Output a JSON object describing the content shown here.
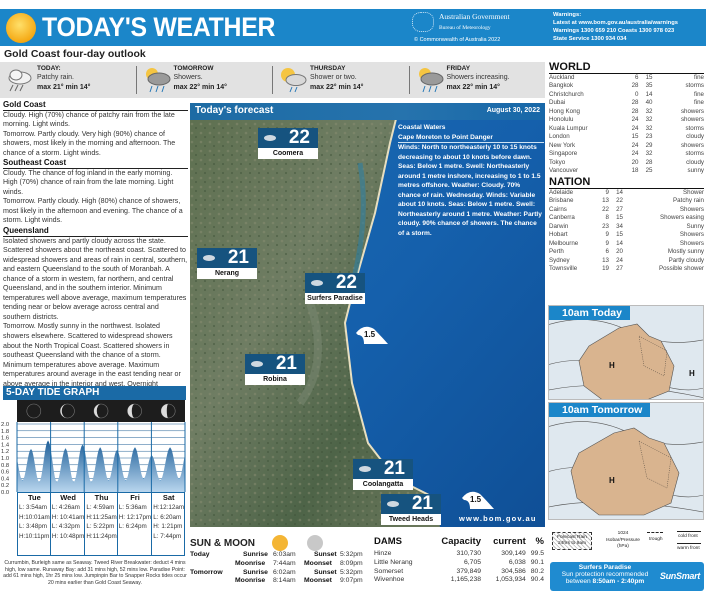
{
  "header": {
    "title": "TODAY'S WEATHER",
    "gov_line1": "Australian Government",
    "gov_line2": "Bureau of Meteorology",
    "copyright": "© Commonwealth of Australia 2022",
    "warnings_title": "Warnings:",
    "warnings_line1": "Latest at www.bom.gov.au/australia/warnings",
    "warnings_line2": "Warnings 1300 659 210  Coasts 1300 978 023",
    "warnings_line3": "State Service 1300 934 034",
    "accent_color": "#1b86c9"
  },
  "outlook": {
    "title": "Gold Coast four-day outlook",
    "days": [
      {
        "name": "TODAY:",
        "desc": "Patchy rain.",
        "temps": "max 21° min 14°",
        "icon": "rain-cloud-icon"
      },
      {
        "name": "TOMORROW",
        "desc": "Showers.",
        "temps": "max 22° min 14°",
        "icon": "sun-cloud-showers-icon"
      },
      {
        "name": "THURSDAY",
        "desc": "Shower or two.",
        "temps": "max 22° min 14°",
        "icon": "sun-cloud-shower-icon"
      },
      {
        "name": "FRIDAY",
        "desc": "Showers increasing.",
        "temps": "max 22° min 14°",
        "icon": "sun-cloud-showers-icon"
      }
    ]
  },
  "forecast_text": {
    "gold_coast": {
      "heading": "Gold Coast",
      "today": "Cloudy. High (70%) chance of patchy rain from the late morning. Light winds.",
      "tomorrow": "Tomorrow. Partly cloudy. Very high (90%) chance of showers, most likely in the morning and afternoon. The chance of a storm. Light winds."
    },
    "southeast_coast": {
      "heading": "Southeast Coast",
      "today": "Cloudy. The chance of fog inland in the early morning. High (70%) chance of rain from the late morning. Light winds.",
      "tomorrow": "Tomorrow. Partly cloudy. High (80%) chance of showers, most likely in the afternoon and evening. The chance of a storm. Light winds."
    },
    "queensland": {
      "heading": "Queensland",
      "today": "Isolated showers and partly cloudy across the state. Scattered showers about the northeast coast. Scattered to widespread showers and areas of rain in central, southern, and eastern Queensland to the south of Moranbah. A chance of a storm in western, far northern, and central Queensland, and in the southern interior. Minimum temperatures well above average, maximum temperatures tending near or below average across central and southern districts.",
      "tomorrow": "Tomorrow. Mostly sunny in the northwest. Isolated showers elsewhere. Scattered to widespread showers about the North Tropical Coast. Scattered showers in southeast Queensland with the chance of a storm. Minimum temperatures above average. Maximum temperatures around average in the east tending near or above average in the interior and west. Overnight minimums well above average across most of the state."
    }
  },
  "tide": {
    "title": "5-DAY TIDE GRAPH",
    "days": [
      {
        "name": "Tue",
        "rows": [
          "L:  3:54am",
          "H:10:01am",
          "L:  3:48pm",
          "H:10:11pm"
        ]
      },
      {
        "name": "Wed",
        "rows": [
          "L:  4:26am",
          "H: 10:41am",
          "L:  4:32pm",
          "H: 10:48pm"
        ]
      },
      {
        "name": "Thu",
        "rows": [
          "L:  4:59am",
          "H:11:25am",
          "L:  5:22pm",
          "H:11:24pm"
        ]
      },
      {
        "name": "Fri",
        "rows": [
          "L:  5:36am",
          "H: 12:17pm",
          "L:  6:24pm",
          ""
        ]
      },
      {
        "name": "Sat",
        "rows": [
          "H:12:12am",
          "L:  6:20am",
          "H:  1:21pm",
          "L:  7:44pm"
        ]
      }
    ],
    "note": "Currumbin, Burleigh same as Seaway. Tweed River Breakwater: deduct 4 mins high, low same. Runaway Bay: add 31 mins high, 52 mins low. Paradise Point: add 61 mins high, 1hr 25 mins low. Jumpinpin Bar to Snapper Rocks tides occur 20 mins earlier than Gold Coast Seaway."
  },
  "chart_data": {
    "type": "area",
    "title": "5-DAY TIDE GRAPH",
    "xlabel": "",
    "ylabel": "",
    "categories": [
      "Tue",
      "Wed",
      "Thu",
      "Fri",
      "Sat"
    ],
    "ylim": [
      0,
      2.0
    ],
    "yticks": [
      "2.0",
      "1.8",
      "1.6",
      "1.4",
      "1.2",
      "1.0",
      "0.8",
      "0.6",
      "0.4",
      "0.2",
      "0.0"
    ],
    "grid": true,
    "color": "#2a7ab8",
    "series": [
      {
        "points": [
          {
            "day": "Tue",
            "time": "3:54am",
            "height": 0.35
          },
          {
            "day": "Tue",
            "time": "10:01am",
            "height": 1.25
          },
          {
            "day": "Tue",
            "time": "3:48pm",
            "height": 0.3
          },
          {
            "day": "Tue",
            "time": "10:11pm",
            "height": 1.5
          },
          {
            "day": "Wed",
            "time": "4:26am",
            "height": 0.3
          },
          {
            "day": "Wed",
            "time": "10:41am",
            "height": 1.27
          },
          {
            "day": "Wed",
            "time": "4:32pm",
            "height": 0.3
          },
          {
            "day": "Wed",
            "time": "10:48pm",
            "height": 1.38
          },
          {
            "day": "Thu",
            "time": "4:59am",
            "height": 0.3
          },
          {
            "day": "Thu",
            "time": "11:25am",
            "height": 1.3
          },
          {
            "day": "Thu",
            "time": "5:22pm",
            "height": 0.35
          },
          {
            "day": "Thu",
            "time": "11:24pm",
            "height": 1.22
          },
          {
            "day": "Fri",
            "time": "5:36am",
            "height": 0.35
          },
          {
            "day": "Fri",
            "time": "12:17pm",
            "height": 1.3
          },
          {
            "day": "Fri",
            "time": "6:24pm",
            "height": 0.4
          },
          {
            "day": "Sat",
            "time": "12:12am",
            "height": 1.07
          },
          {
            "day": "Sat",
            "time": "6:20am",
            "height": 0.35
          },
          {
            "day": "Sat",
            "time": "1:21pm",
            "height": 1.3
          },
          {
            "day": "Sat",
            "time": "7:44pm",
            "height": 0.4
          }
        ]
      }
    ]
  },
  "map": {
    "title": "Today's forecast",
    "date": "August 30, 2022",
    "locations": [
      {
        "name": "Coomera",
        "temp": "22"
      },
      {
        "name": "Nerang",
        "temp": "21"
      },
      {
        "name": "Surfers Paradise",
        "temp": "22"
      },
      {
        "name": "Robina",
        "temp": "21"
      },
      {
        "name": "Coolangatta",
        "temp": "21"
      },
      {
        "name": "Tweed Heads",
        "temp": "21"
      }
    ],
    "waves": [
      "1.5",
      "1.5"
    ],
    "url": "www.bom.gov.au",
    "coastal": {
      "title": "Coastal Waters",
      "area": "Cape Moreton to Point Danger",
      "text": "Winds: North to northeasterly 10 to 15 knots decreasing to about 10 knots before dawn. Seas: Below 1 metre. Swell: Northeasterly around 1 metre inshore, increasing to 1 to 1.5 metres offshore. Weather: Cloudy. 70% chance of rain. Wednesday. Winds: Variable about 10 knots. Seas: Below 1 metre. Swell: Northeasterly around 1 metre. Weather: Partly cloudy. 90% chance of showers. The chance of a storm."
    }
  },
  "sun_moon": {
    "title": "SUN & MOON",
    "today": {
      "label": "Today",
      "sunrise_l": "Sunrise",
      "sunrise": "6:03am",
      "sunset_l": "Sunset",
      "sunset": "5:32pm",
      "moonrise_l": "Moonrise",
      "moonrise": "7:44am",
      "moonset_l": "Moonset",
      "moonset": "8:09pm"
    },
    "tomorrow": {
      "label": "Tomorrow",
      "sunrise_l": "Sunrise",
      "sunrise": "6:02am",
      "sunset_l": "Sunset",
      "sunset": "5:32pm",
      "moonrise_l": "Moonrise",
      "moonrise": "8:14am",
      "moonset_l": "Moonset",
      "moonset": "9:07pm"
    }
  },
  "dams": {
    "headers": [
      "DAMS",
      "Capacity",
      "current",
      "%"
    ],
    "rows": [
      [
        "Hinze",
        "310,730",
        "309,149",
        "99.5"
      ],
      [
        "Little Nerang",
        "6,705",
        "6,038",
        "90.1"
      ],
      [
        "Somerset",
        "379,849",
        "304,586",
        "80.2"
      ],
      [
        "Wivenhoe",
        "1,165,238",
        "1,053,934",
        "90.4"
      ]
    ]
  },
  "world": {
    "title": "WORLD",
    "rows": [
      [
        "Auckland",
        "6",
        "15",
        "fine"
      ],
      [
        "Bangkok",
        "28",
        "35",
        "storms"
      ],
      [
        "Christchurch",
        "0",
        "14",
        "fine"
      ],
      [
        "Dubai",
        "28",
        "40",
        "fine"
      ],
      [
        "Hong Kong",
        "28",
        "32",
        "showers"
      ],
      [
        "Honolulu",
        "24",
        "32",
        "showers"
      ],
      [
        "Kuala Lumpur",
        "24",
        "32",
        "storms"
      ],
      [
        "London",
        "15",
        "23",
        "cloudy"
      ],
      [
        "New York",
        "24",
        "29",
        "showers"
      ],
      [
        "Singapore",
        "24",
        "32",
        "storms"
      ],
      [
        "Tokyo",
        "20",
        "28",
        "cloudy"
      ],
      [
        "Vancouver",
        "18",
        "25",
        "sunny"
      ]
    ]
  },
  "nation": {
    "title": "NATION",
    "rows": [
      [
        "Adelaide",
        "9",
        "14",
        "Shower"
      ],
      [
        "Brisbane",
        "13",
        "22",
        "Patchy rain"
      ],
      [
        "Cairns",
        "22",
        "27",
        "Showers"
      ],
      [
        "Canberra",
        "8",
        "15",
        "Showers easing"
      ],
      [
        "Darwin",
        "23",
        "34",
        "Sunny"
      ],
      [
        "Hobart",
        "9",
        "15",
        "Showers"
      ],
      [
        "Melbourne",
        "9",
        "14",
        "Showers"
      ],
      [
        "Perth",
        "6",
        "20",
        "Mostly sunny"
      ],
      [
        "Sydney",
        "13",
        "24",
        "Partly cloudy"
      ],
      [
        "Townsville",
        "19",
        "27",
        "Possible shower"
      ]
    ]
  },
  "synoptic": {
    "today_label": "10am Today",
    "tomorrow_label": "10am Tomorrow",
    "legend": {
      "rain": "Forecast Rain 24hrs to 9am",
      "isobar_value": "1024",
      "isobar": "Isobar/Pressure (hPa)",
      "trough": "trough",
      "cold_front": "cold front",
      "warm_front": "warm front"
    }
  },
  "sunsmart": {
    "place": "Surfers Paradise",
    "line1": "Sun protection recommended",
    "between": "between",
    "times": "8:50am - 2:40pm",
    "logo": "SunSmart"
  }
}
